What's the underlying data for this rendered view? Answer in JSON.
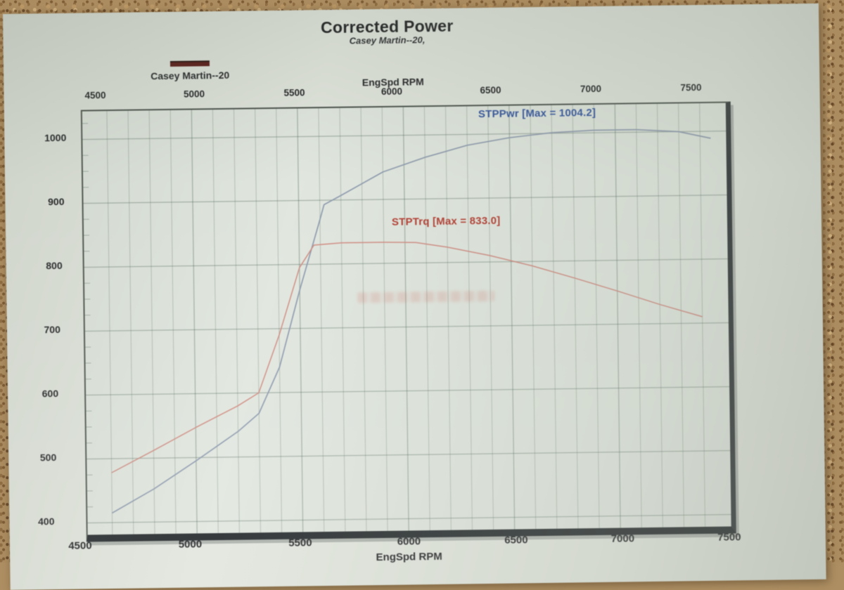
{
  "title": {
    "text": "Corrected Power",
    "subtitle": "Casey Martin--20,"
  },
  "legend": {
    "label": "Casey Martin--20",
    "swatch_color": "#55110d"
  },
  "axes": {
    "top": {
      "title": "EngSpd RPM",
      "ticks": [
        "4500",
        "5000",
        "5500",
        "6000",
        "6500",
        "7000",
        "7500"
      ]
    },
    "bottom": {
      "ticks": [
        "4500",
        "5000",
        "5500",
        "6000",
        "6500",
        "7000",
        "7500"
      ],
      "clipped_title": "EngSpd RPM"
    },
    "left": {
      "ticks": [
        "1000",
        "900",
        "800",
        "700",
        "600",
        "500",
        "400"
      ]
    }
  },
  "annotations": {
    "power": "STPPwr [Max = 1004.2]",
    "torque": "STPTrq [Max = 833.0]"
  },
  "colors": {
    "grid": "rgba(72,94,82,0.40)",
    "grid_minor": "rgba(72,94,82,0.30)",
    "power_line": "#8d99ae",
    "torque_line": "#d08a80"
  },
  "chart_data": {
    "type": "line",
    "title": "Corrected Power",
    "subtitle": "Casey Martin--20,",
    "x_label": "EngSpd RPM",
    "x_range": [
      4500,
      7500
    ],
    "x_grid_step": 100,
    "y_range": [
      380,
      1045
    ],
    "y_grid_step": 100,
    "y_tick_values": [
      400,
      500,
      600,
      700,
      800,
      900,
      1000
    ],
    "x_tick_values": [
      4500,
      5000,
      5500,
      6000,
      6500,
      7000,
      7500
    ],
    "grid": true,
    "legend_position": "top-left",
    "series": [
      {
        "name": "STPPwr",
        "max": 1004.2,
        "x": [
          4600,
          4800,
          5000,
          5200,
          5300,
          5400,
          5500,
          5600,
          5620,
          5700,
          5900,
          6100,
          6300,
          6500,
          6700,
          6900,
          7100,
          7300,
          7450
        ],
        "values": [
          415,
          452,
          495,
          540,
          568,
          640,
          760,
          870,
          893,
          907,
          943,
          965,
          983,
          994,
          1001,
          1004,
          1004,
          1000,
          989
        ]
      },
      {
        "name": "STPTrq",
        "max": 833.0,
        "x": [
          4600,
          4800,
          5000,
          5200,
          5300,
          5400,
          5500,
          5570,
          5700,
          5900,
          6050,
          6200,
          6400,
          6600,
          6800,
          7000,
          7200,
          7400
        ],
        "values": [
          478,
          512,
          547,
          580,
          600,
          690,
          795,
          830,
          833,
          833,
          832,
          824,
          810,
          793,
          773,
          752,
          730,
          710
        ]
      }
    ]
  }
}
